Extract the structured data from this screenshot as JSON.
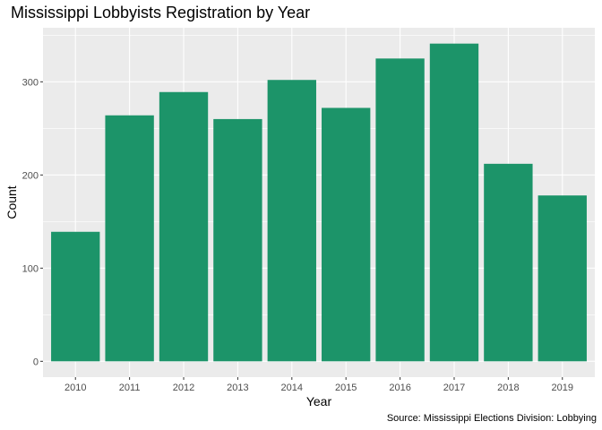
{
  "chart_data": {
    "type": "bar",
    "title": "Mississippi Lobbyists Registration by Year",
    "caption": "Source: Mississippi Elections Division: Lobbying",
    "xlabel": "Year",
    "ylabel": "Count",
    "categories": [
      "2010",
      "2011",
      "2012",
      "2013",
      "2014",
      "2015",
      "2016",
      "2017",
      "2018",
      "2019"
    ],
    "values": [
      139,
      264,
      289,
      260,
      302,
      272,
      325,
      341,
      212,
      178
    ],
    "y_ticks": [
      0,
      100,
      200,
      300
    ],
    "y_tick_labels": [
      "0",
      "100",
      "200",
      "300"
    ],
    "ylim": [
      -17,
      358
    ],
    "grid": true,
    "colors": {
      "bar": "#1c9469",
      "panel": "#ebebeb",
      "grid": "#ffffff",
      "tick_text": "#4d4d4d",
      "tick_mark": "#333333"
    }
  }
}
